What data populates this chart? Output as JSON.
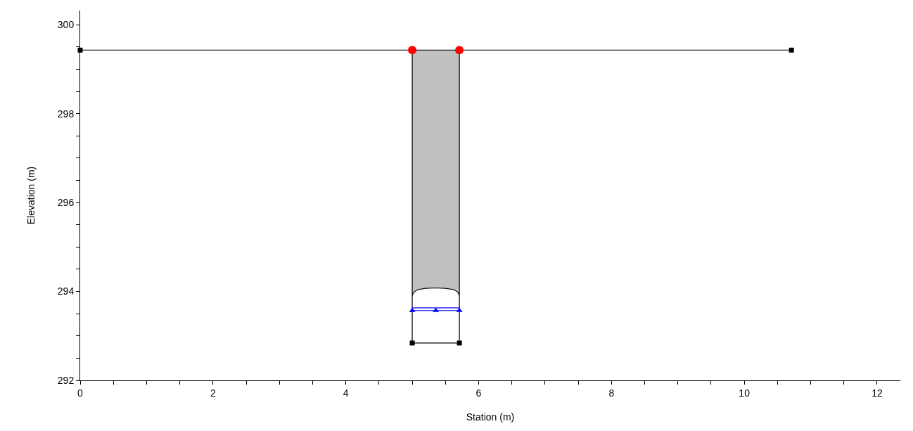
{
  "chart_data": {
    "type": "line",
    "xlabel": "Station (m)",
    "ylabel": "Elevation (m)",
    "xlim": [
      0,
      12.35
    ],
    "ylim": [
      292,
      300.32
    ],
    "xticks": [
      0,
      {
        "value": 0.5,
        "label": null
      },
      2,
      {
        "value": 1,
        "label": null
      },
      {
        "value": 1.5,
        "label": null
      },
      {
        "value": 2.5,
        "label": null
      },
      {
        "value": 3,
        "label": null
      },
      {
        "value": 3.5,
        "label": null
      },
      4,
      {
        "value": 4.5,
        "label": null
      },
      {
        "value": 5,
        "label": null
      },
      {
        "value": 5.5,
        "label": null
      },
      6,
      {
        "value": 6.5,
        "label": null
      },
      {
        "value": 7,
        "label": null
      },
      {
        "value": 7.5,
        "label": null
      },
      8,
      {
        "value": 8.5,
        "label": null
      },
      {
        "value": 9,
        "label": null
      },
      {
        "value": 9.5,
        "label": null
      },
      10,
      {
        "value": 10.5,
        "label": null
      },
      {
        "value": 11,
        "label": null
      },
      {
        "value": 11.5,
        "label": null
      },
      12
    ],
    "yticks": [
      292,
      {
        "value": 292.5,
        "label": null
      },
      {
        "value": 293,
        "label": null
      },
      {
        "value": 293.5,
        "label": null
      },
      294,
      {
        "value": 294.5,
        "label": null
      },
      {
        "value": 295,
        "label": null
      },
      {
        "value": 295.5,
        "label": null
      },
      296,
      {
        "value": 296.5,
        "label": null
      },
      {
        "value": 297,
        "label": null
      },
      {
        "value": 297.5,
        "label": null
      },
      298,
      {
        "value": 298.5,
        "label": null
      },
      {
        "value": 299,
        "label": null
      },
      {
        "value": 299.5,
        "label": null
      },
      300
    ],
    "series": [
      {
        "type": "area",
        "color": "#c0c0c0",
        "x": [
          5.0,
          5.0,
          5.02,
          5.08,
          5.2,
          5.355,
          5.5,
          5.63,
          5.69,
          5.71,
          5.71
        ],
        "values": [
          299.43,
          293.9,
          293.98,
          294.04,
          294.07,
          294.08,
          294.07,
          294.04,
          293.98,
          293.9,
          299.43
        ]
      },
      {
        "color": "#000000",
        "marker": "none",
        "x": [
          5.0,
          5.0,
          5.71,
          5.71
        ],
        "values": [
          293.9,
          292.84,
          292.84,
          293.9
        ]
      },
      {
        "type": "scatter",
        "color": "#000000",
        "marker": "square",
        "x": [
          5.0,
          5.71
        ],
        "values": [
          292.84,
          292.84
        ]
      },
      {
        "color": "#000000",
        "marker": "square",
        "x": [
          0,
          10.71
        ],
        "values": [
          299.43,
          299.43
        ]
      },
      {
        "color": "#0000ff",
        "marker": "none",
        "x": [
          5.0,
          5.71
        ],
        "values": [
          293.63,
          293.63
        ]
      },
      {
        "color": "#0000ff",
        "marker": "triangle",
        "x": [
          5.0,
          5.355,
          5.71
        ],
        "values": [
          293.57,
          293.57,
          293.57
        ]
      },
      {
        "type": "scatter",
        "color": "#ff0000",
        "marker": "circle",
        "x": [
          5.0,
          5.71
        ],
        "values": [
          299.43,
          299.43
        ]
      }
    ]
  }
}
